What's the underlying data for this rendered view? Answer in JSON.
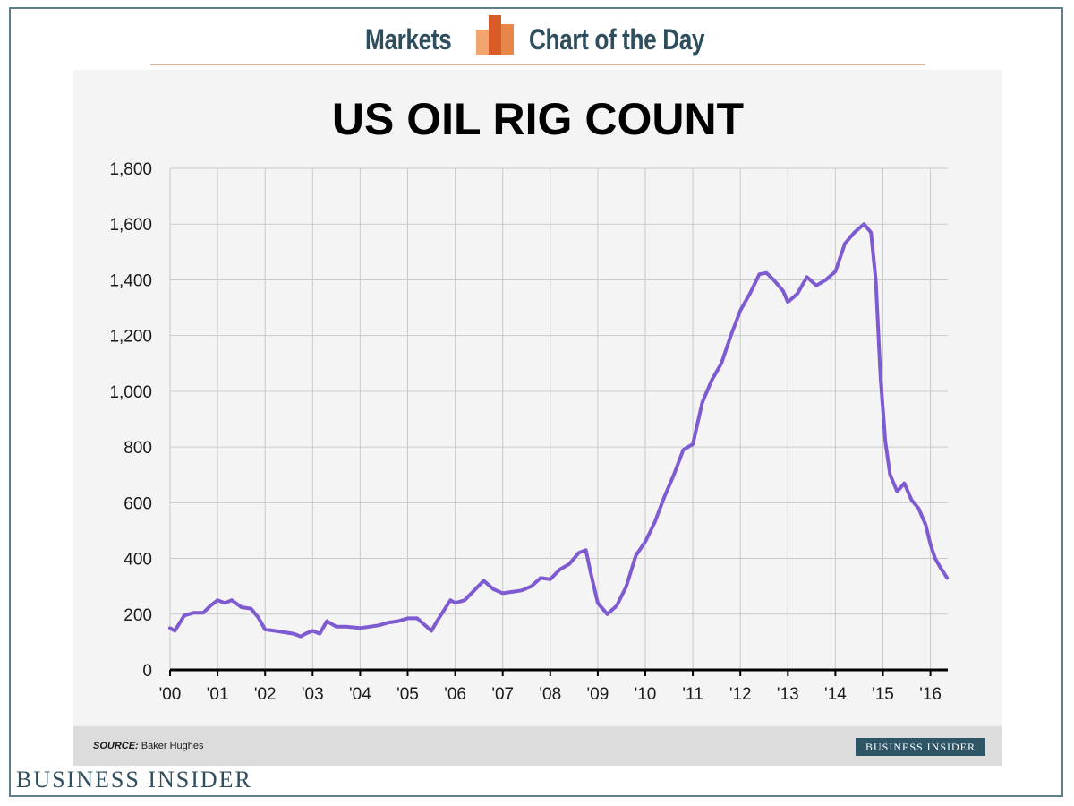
{
  "header": {
    "left_text": "Markets",
    "right_text": "Chart of the Day",
    "logo_icon": "bar-chart-logo-icon",
    "accent_color": "#e8864a"
  },
  "chart_data": {
    "type": "line",
    "title": "US OIL RIG COUNT",
    "xlabel": "",
    "ylabel": "",
    "xlim": [
      2000,
      2016.4
    ],
    "ylim": [
      0,
      1800
    ],
    "y_ticks": [
      "0",
      "200",
      "400",
      "600",
      "800",
      "1,000",
      "1,200",
      "1,400",
      "1,600",
      "1,800"
    ],
    "x_ticks": [
      "'00",
      "'01",
      "'02",
      "'03",
      "'04",
      "'05",
      "'06",
      "'07",
      "'08",
      "'09",
      "'10",
      "'11",
      "'12",
      "'13",
      "'14",
      "'15",
      "'16"
    ],
    "grid": true,
    "line_color": "#7e5bd1",
    "series": [
      {
        "name": "US Oil Rig Count",
        "x": [
          2000.0,
          2000.1,
          2000.3,
          2000.5,
          2000.7,
          2000.85,
          2001.0,
          2001.15,
          2001.3,
          2001.5,
          2001.7,
          2001.85,
          2002.0,
          2002.2,
          2002.4,
          2002.6,
          2002.75,
          2002.85,
          2003.0,
          2003.15,
          2003.3,
          2003.5,
          2003.7,
          2004.0,
          2004.2,
          2004.4,
          2004.6,
          2004.8,
          2005.0,
          2005.2,
          2005.4,
          2005.5,
          2005.6,
          2005.75,
          2005.9,
          2006.0,
          2006.2,
          2006.4,
          2006.6,
          2006.8,
          2007.0,
          2007.2,
          2007.4,
          2007.6,
          2007.8,
          2008.0,
          2008.2,
          2008.4,
          2008.6,
          2008.75,
          2008.85,
          2009.0,
          2009.2,
          2009.4,
          2009.6,
          2009.8,
          2010.0,
          2010.2,
          2010.4,
          2010.6,
          2010.8,
          2011.0,
          2011.2,
          2011.4,
          2011.6,
          2011.8,
          2012.0,
          2012.2,
          2012.4,
          2012.55,
          2012.7,
          2012.9,
          2013.0,
          2013.2,
          2013.4,
          2013.6,
          2013.8,
          2014.0,
          2014.2,
          2014.4,
          2014.6,
          2014.75,
          2014.85,
          2014.95,
          2015.05,
          2015.15,
          2015.3,
          2015.45,
          2015.6,
          2015.75,
          2015.9,
          2016.0,
          2016.1,
          2016.2,
          2016.35
        ],
        "values": [
          150,
          140,
          195,
          205,
          205,
          230,
          250,
          240,
          250,
          225,
          220,
          190,
          145,
          140,
          135,
          130,
          120,
          130,
          140,
          130,
          175,
          155,
          155,
          150,
          155,
          160,
          170,
          175,
          185,
          185,
          155,
          140,
          170,
          210,
          250,
          240,
          250,
          285,
          320,
          290,
          275,
          280,
          285,
          300,
          330,
          325,
          360,
          380,
          420,
          430,
          350,
          240,
          200,
          230,
          300,
          410,
          460,
          530,
          620,
          700,
          790,
          810,
          960,
          1040,
          1100,
          1200,
          1290,
          1350,
          1420,
          1425,
          1400,
          1360,
          1320,
          1350,
          1410,
          1380,
          1400,
          1430,
          1530,
          1570,
          1600,
          1570,
          1400,
          1050,
          820,
          700,
          640,
          670,
          610,
          580,
          520,
          450,
          400,
          370,
          330
        ]
      }
    ]
  },
  "footer": {
    "source_label": "SOURCE:",
    "source_value": "Baker Hughes",
    "badge_text": "BUSINESS INSIDER"
  },
  "brand": {
    "logo_text": "BUSINESS INSIDER"
  }
}
